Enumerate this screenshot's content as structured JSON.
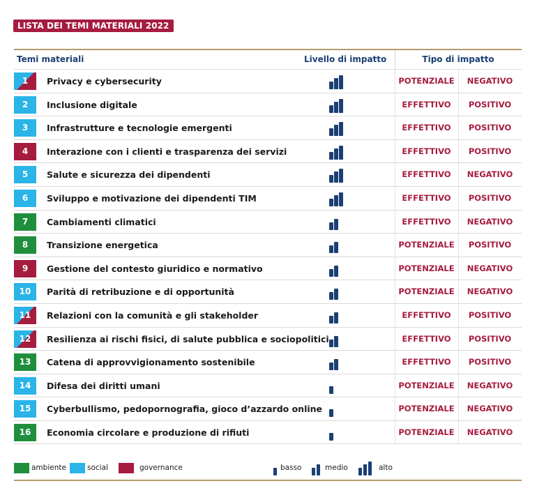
{
  "title": "LISTA DEI TEMI MATERIALI 2022",
  "headers": {
    "tema": "Temi materiali",
    "livello": "Livello di impatto",
    "tipo": "Tipo di impatto"
  },
  "rows": [
    {
      "num": "1",
      "label": "Privacy e cybersecurity",
      "category": "mixed",
      "level": 3,
      "type1": "POTENZIALE",
      "type2": "NEGATIVO"
    },
    {
      "num": "2",
      "label": "Inclusione digitale",
      "category": "social",
      "level": 3,
      "type1": "EFFETTIVO",
      "type2": "POSITIVO"
    },
    {
      "num": "3",
      "label": "Infrastrutture e tecnologie emergenti",
      "category": "social",
      "level": 3,
      "type1": "EFFETTIVO",
      "type2": "POSITIVO"
    },
    {
      "num": "4",
      "label": "Interazione con i clienti e trasparenza dei servizi",
      "category": "governance",
      "level": 3,
      "type1": "EFFETTIVO",
      "type2": "POSITIVO"
    },
    {
      "num": "5",
      "label": "Salute e sicurezza dei dipendenti",
      "category": "social",
      "level": 3,
      "type1": "EFFETTIVO",
      "type2": "NEGATIVO"
    },
    {
      "num": "6",
      "label": "Sviluppo e motivazione dei dipendenti TIM",
      "category": "social",
      "level": 3,
      "type1": "EFFETTIVO",
      "type2": "POSITIVO"
    },
    {
      "num": "7",
      "label": "Cambiamenti climatici",
      "category": "ambiente",
      "level": 2,
      "type1": "EFFETTIVO",
      "type2": "NEGATIVO"
    },
    {
      "num": "8",
      "label": "Transizione energetica",
      "category": "ambiente",
      "level": 2,
      "type1": "POTENZIALE",
      "type2": "POSITIVO"
    },
    {
      "num": "9",
      "label": "Gestione del contesto giuridico e normativo",
      "category": "governance",
      "level": 2,
      "type1": "POTENZIALE",
      "type2": "NEGATIVO"
    },
    {
      "num": "10",
      "label": "Parità di retribuzione e di opportunità",
      "category": "social",
      "level": 2,
      "type1": "POTENZIALE",
      "type2": "NEGATIVO"
    },
    {
      "num": "11",
      "label": "Relazioni con la comunità e gli stakeholder",
      "category": "mixed",
      "level": 2,
      "type1": "EFFETTIVO",
      "type2": "POSITIVO"
    },
    {
      "num": "12",
      "label": "Resilienza ai rischi fisici, di salute pubblica e sociopolitici",
      "category": "mixed",
      "level": 2,
      "type1": "EFFETTIVO",
      "type2": "POSITIVO"
    },
    {
      "num": "13",
      "label": "Catena di approvvigionamento sostenibile",
      "category": "ambiente",
      "level": 2,
      "type1": "EFFETTIVO",
      "type2": "POSITIVO"
    },
    {
      "num": "14",
      "label": "Difesa dei diritti umani",
      "category": "social",
      "level": 1,
      "type1": "POTENZIALE",
      "type2": "NEGATIVO"
    },
    {
      "num": "15",
      "label": "Cyberbullismo, pedopornografia, gioco d’azzardo online",
      "category": "social",
      "level": 1,
      "type1": "POTENZIALE",
      "type2": "NEGATIVO"
    },
    {
      "num": "16",
      "label": "Economia circolare e produzione di rifiuti",
      "category": "ambiente",
      "level": 1,
      "type1": "POTENZIALE",
      "type2": "NEGATIVO"
    }
  ],
  "legend": {
    "ambiente": "ambiente",
    "social": "social",
    "governance": "governance",
    "basso": "basso",
    "medio": "medio",
    "alto": "alto"
  },
  "colors": {
    "ambiente": "#1f8f3d",
    "social": "#2ab4e8",
    "governance": "#a51c3f",
    "level_bar": "#1b3f73",
    "impact_text": "#a51c3f"
  }
}
